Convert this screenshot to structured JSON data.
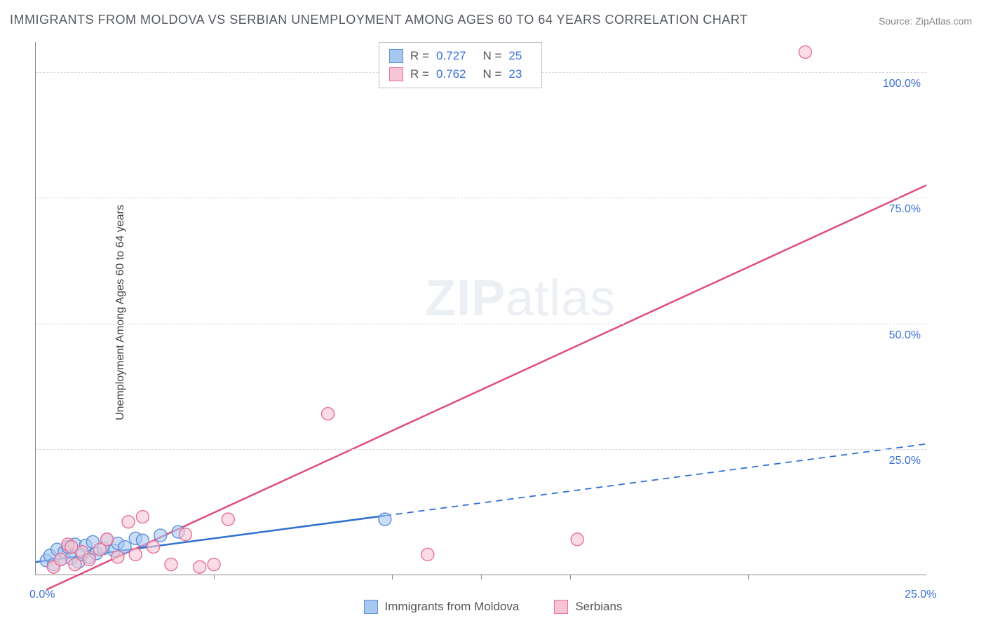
{
  "chart": {
    "type": "scatter",
    "title": "IMMIGRANTS FROM MOLDOVA VS SERBIAN UNEMPLOYMENT AMONG AGES 60 TO 64 YEARS CORRELATION CHART",
    "source_label": "Source:",
    "source_value": "ZipAtlas.com",
    "y_axis_label": "Unemployment Among Ages 60 to 64 years",
    "y_ticks": [
      {
        "value": 25,
        "label": "25.0%"
      },
      {
        "value": 50,
        "label": "50.0%"
      },
      {
        "value": 75,
        "label": "75.0%"
      },
      {
        "value": 100,
        "label": "100.0%"
      }
    ],
    "x_min": 0.0,
    "x_max": 25.0,
    "y_min": 0.0,
    "y_max": 106.0,
    "x_origin_label": "0.0%",
    "x_end_label": "25.0%",
    "x_minor_ticks": [
      5,
      10,
      12.5,
      15,
      20
    ],
    "grid_color": "#d8d8d8",
    "background_color": "#ffffff",
    "axis_color": "#888888",
    "label_color": "#3a6fd8",
    "title_fontsize": 18,
    "tick_fontsize": 16,
    "series": [
      {
        "name": "Immigrants from Moldova",
        "color_fill": "#a9c8f0",
        "color_stroke": "#5a8fd8",
        "line_color": "#2f6fd0",
        "line_solid_xmax": 9.8,
        "line_dash_after": true,
        "regression": {
          "x1": 0.0,
          "y1": 2.5,
          "x2": 25.0,
          "y2": 26.0
        },
        "R": "0.727",
        "N": "25",
        "points": [
          {
            "x": 0.3,
            "y": 2.8
          },
          {
            "x": 0.4,
            "y": 3.8
          },
          {
            "x": 0.5,
            "y": 2.0
          },
          {
            "x": 0.6,
            "y": 5.0
          },
          {
            "x": 0.7,
            "y": 3.0
          },
          {
            "x": 0.8,
            "y": 4.5
          },
          {
            "x": 0.9,
            "y": 5.5
          },
          {
            "x": 1.0,
            "y": 3.2
          },
          {
            "x": 1.1,
            "y": 6.0
          },
          {
            "x": 1.2,
            "y": 2.5
          },
          {
            "x": 1.3,
            "y": 4.0
          },
          {
            "x": 1.4,
            "y": 5.8
          },
          {
            "x": 1.5,
            "y": 3.5
          },
          {
            "x": 1.6,
            "y": 6.5
          },
          {
            "x": 1.7,
            "y": 4.2
          },
          {
            "x": 1.9,
            "y": 5.2
          },
          {
            "x": 2.0,
            "y": 7.0
          },
          {
            "x": 2.2,
            "y": 4.8
          },
          {
            "x": 2.3,
            "y": 6.2
          },
          {
            "x": 2.5,
            "y": 5.5
          },
          {
            "x": 2.8,
            "y": 7.2
          },
          {
            "x": 3.0,
            "y": 6.8
          },
          {
            "x": 3.5,
            "y": 7.8
          },
          {
            "x": 4.0,
            "y": 8.5
          },
          {
            "x": 9.8,
            "y": 11.0
          }
        ]
      },
      {
        "name": "Serbians",
        "color_fill": "#f6c4d2",
        "color_stroke": "#e66f96",
        "line_color": "#e04c7d",
        "line_solid_xmax": 25.0,
        "line_dash_after": false,
        "regression": {
          "x1": 0.3,
          "y1": -3.0,
          "x2": 25.0,
          "y2": 77.5
        },
        "R": "0.762",
        "N": "23",
        "points": [
          {
            "x": 0.5,
            "y": 1.5
          },
          {
            "x": 0.7,
            "y": 3.0
          },
          {
            "x": 0.9,
            "y": 6.0
          },
          {
            "x": 1.1,
            "y": 2.0
          },
          {
            "x": 1.3,
            "y": 4.5
          },
          {
            "x": 1.5,
            "y": 3.0
          },
          {
            "x": 1.8,
            "y": 5.0
          },
          {
            "x": 2.0,
            "y": 7.0
          },
          {
            "x": 2.3,
            "y": 3.5
          },
          {
            "x": 2.6,
            "y": 10.5
          },
          {
            "x": 2.8,
            "y": 4.0
          },
          {
            "x": 3.0,
            "y": 11.5
          },
          {
            "x": 3.3,
            "y": 5.5
          },
          {
            "x": 3.8,
            "y": 2.0
          },
          {
            "x": 4.2,
            "y": 8.0
          },
          {
            "x": 4.6,
            "y": 1.5
          },
          {
            "x": 5.0,
            "y": 2.0
          },
          {
            "x": 5.4,
            "y": 11.0
          },
          {
            "x": 8.2,
            "y": 32.0
          },
          {
            "x": 11.0,
            "y": 4.0
          },
          {
            "x": 15.2,
            "y": 7.0
          },
          {
            "x": 21.6,
            "y": 104.0
          },
          {
            "x": 1.0,
            "y": 5.5
          }
        ]
      }
    ],
    "stats_legend_labels": {
      "R": "R =",
      "N": "N ="
    },
    "bottom_legend": [
      {
        "label": "Immigrants from Moldova",
        "fill": "#a9c8f0",
        "stroke": "#5a8fd8"
      },
      {
        "label": "Serbians",
        "fill": "#f6c4d2",
        "stroke": "#e66f96"
      }
    ],
    "watermark": {
      "part1": "ZIP",
      "part2": "atlas"
    }
  }
}
